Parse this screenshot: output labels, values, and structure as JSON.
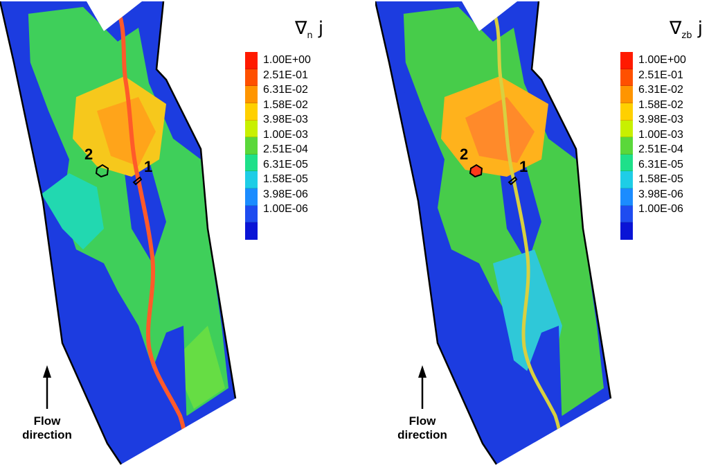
{
  "panels": [
    {
      "legend_title_main": "∇",
      "legend_title_sub": "n",
      "legend_title_end": "j",
      "marker_1": "1",
      "marker_2": "2",
      "flow_line1": "Flow",
      "flow_line2": "direction"
    },
    {
      "legend_title_main": "∇",
      "legend_title_sub": "zb",
      "legend_title_end": "j",
      "marker_1": "1",
      "marker_2": "2",
      "flow_line1": "Flow",
      "flow_line2": "direction"
    }
  ],
  "legend": {
    "levels": [
      "1.00E+00",
      "2.51E-01",
      "6.31E-02",
      "1.58E-02",
      "3.98E-03",
      "1.00E-03",
      "2.51E-04",
      "6.31E-05",
      "1.58E-05",
      "3.98E-06",
      "1.00E-06"
    ],
    "colors": [
      "#ff1a00",
      "#ff5000",
      "#ff9500",
      "#ffd000",
      "#c8f000",
      "#5ad83a",
      "#1ee08a",
      "#1ecde6",
      "#1b8cff",
      "#1e4cf0",
      "#0a14d6"
    ]
  }
}
